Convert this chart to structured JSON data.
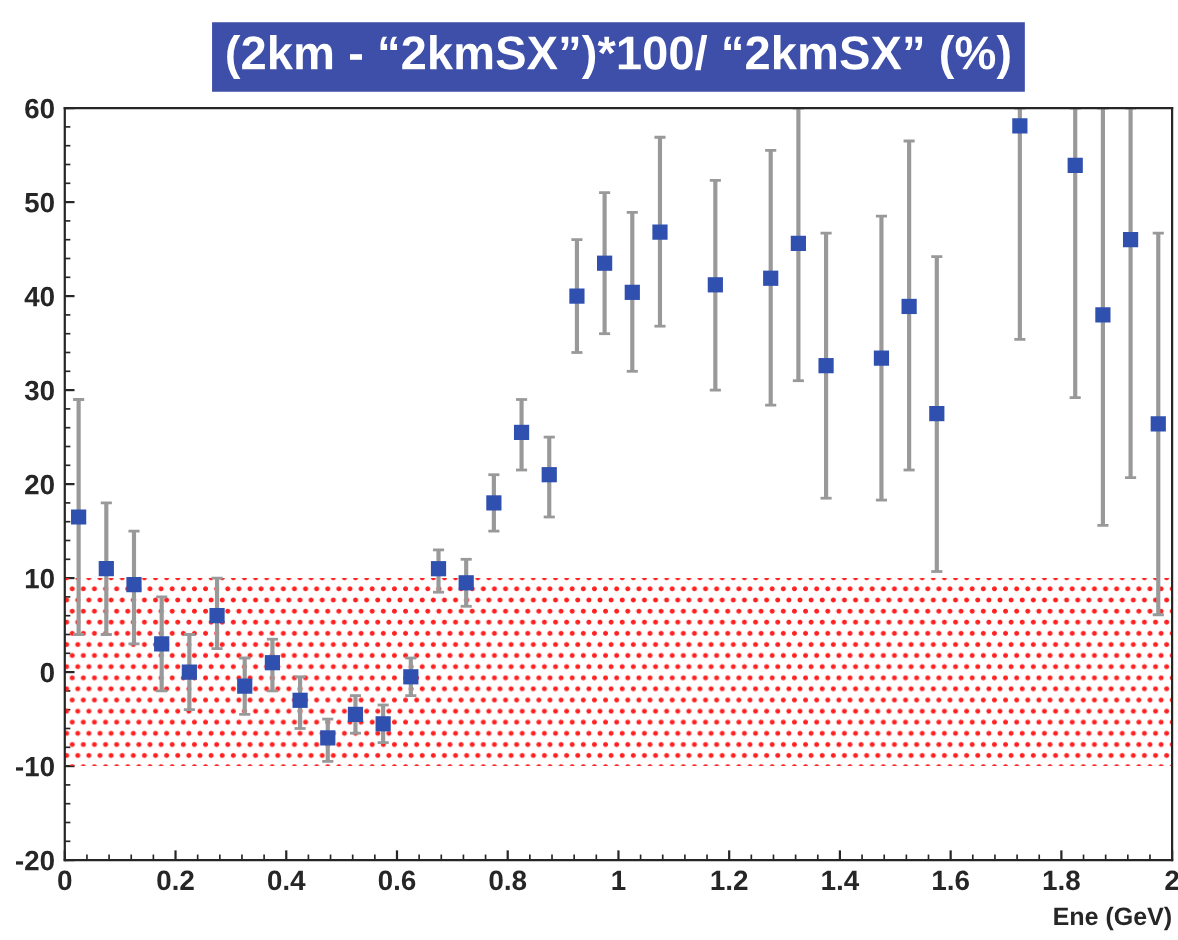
{
  "chart_data": {
    "type": "scatter",
    "title": "(2km - “2kmSX”)*100/ “2kmSX” (%)",
    "xlabel": "Ene (GeV)",
    "x": [
      0.025,
      0.075,
      0.125,
      0.175,
      0.225,
      0.275,
      0.325,
      0.375,
      0.425,
      0.475,
      0.525,
      0.575,
      0.625,
      0.675,
      0.725,
      0.775,
      0.825,
      0.875,
      0.925,
      0.975,
      1.025,
      1.075,
      1.175,
      1.275,
      1.325,
      1.375,
      1.475,
      1.525,
      1.575,
      1.725,
      1.825,
      1.875,
      1.925,
      1.975
    ],
    "series": [
      {
        "color": "#3050b0",
        "values": [
          16.5,
          11,
          9.3,
          3,
          0,
          6,
          -1.5,
          1,
          -3,
          -7,
          -4.5,
          -5.5,
          -0.5,
          11,
          9.5,
          18,
          25.5,
          21,
          40,
          43.5,
          40.4,
          46.8,
          41.2,
          41.9,
          45.6,
          32.6,
          33.4,
          38.9,
          27.5,
          58.1,
          53.9,
          38,
          46,
          26.4
        ],
        "errors": [
          [
            4,
            29
          ],
          [
            4,
            18
          ],
          [
            3,
            15
          ],
          [
            -2,
            8
          ],
          [
            -4,
            4
          ],
          [
            2.5,
            10
          ],
          [
            -4.5,
            1.5
          ],
          [
            -2,
            3.5
          ],
          [
            -6,
            -0.5
          ],
          [
            -9.5,
            -5
          ],
          [
            -6.5,
            -2.5
          ],
          [
            -7.5,
            -3.5
          ],
          [
            -2.5,
            1.5
          ],
          [
            8.5,
            13
          ],
          [
            7,
            12
          ],
          [
            15,
            21
          ],
          [
            21.5,
            29
          ],
          [
            16.5,
            25
          ],
          [
            34,
            46
          ],
          [
            36,
            51
          ],
          [
            32,
            48.9
          ],
          [
            36.8,
            56.9
          ],
          [
            30,
            52.3
          ],
          [
            28.4,
            55.5
          ],
          [
            31,
            60
          ],
          [
            18.5,
            46.7
          ],
          [
            18.3,
            48.5
          ],
          [
            21.5,
            56.5
          ],
          [
            10.7,
            44.2
          ],
          [
            35.4,
            60
          ],
          [
            29.2,
            60
          ],
          [
            15.6,
            60
          ],
          [
            20.7,
            60
          ],
          [
            6.1,
            46.7
          ]
        ]
      }
    ],
    "bands": [
      {
        "axis": "y",
        "from": -10,
        "to": 10,
        "color": "#ff2020"
      }
    ],
    "xlim": [
      0,
      2
    ],
    "ylim": [
      -20,
      60
    ],
    "xticks": [
      0,
      0.2,
      0.4,
      0.6,
      0.8,
      1,
      1.2,
      1.4,
      1.6,
      1.8,
      2
    ],
    "yticks": [
      -20,
      -10,
      0,
      10,
      20,
      30,
      40,
      50,
      60
    ],
    "marker": "square",
    "grid": false,
    "legend": false
  }
}
